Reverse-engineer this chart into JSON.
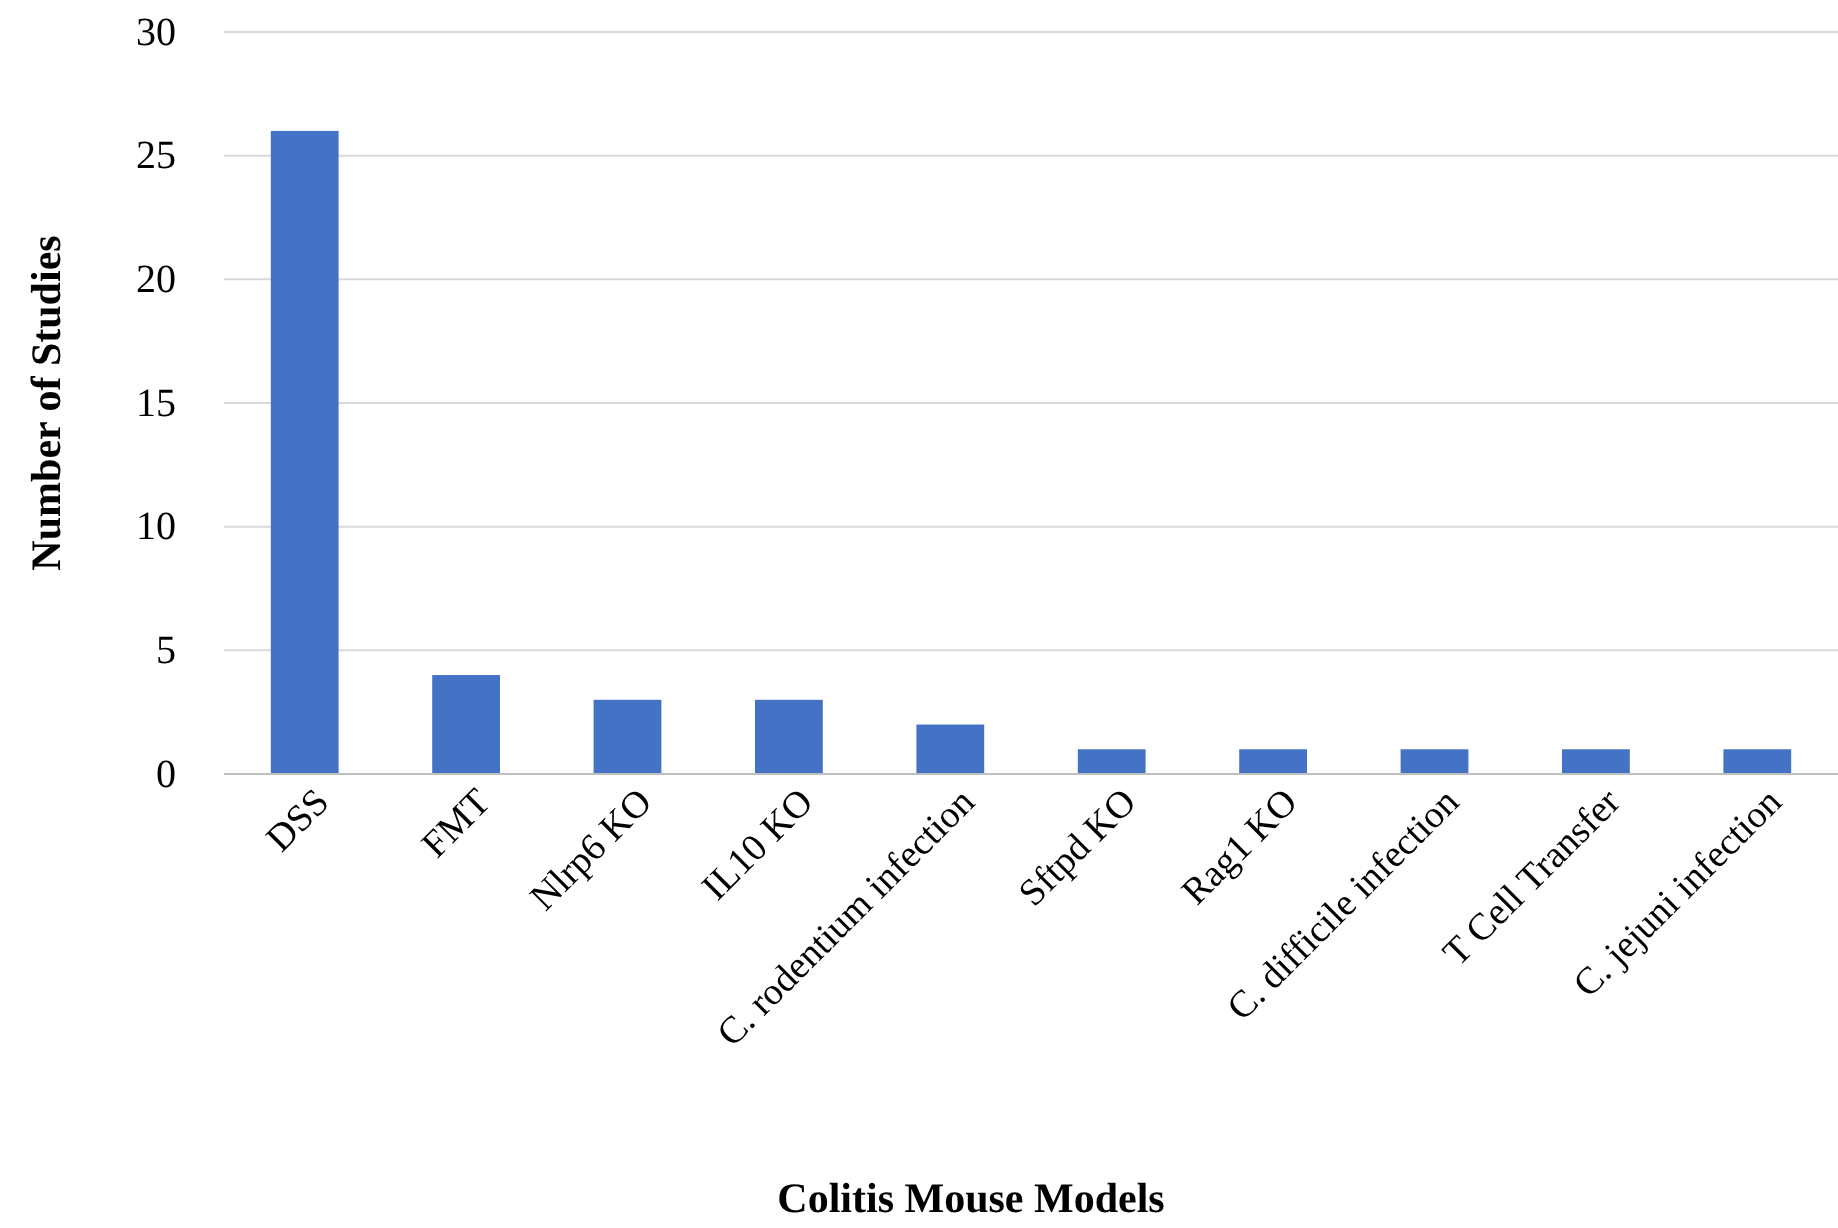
{
  "chart_data": {
    "type": "bar",
    "xlabel": "Colitis Mouse Models",
    "ylabel": "Number of Studies",
    "categories": [
      "DSS",
      "FMT",
      "Nlrp6 KO",
      "IL10 KO",
      "C. rodentium infection",
      "Sftpd KO",
      "Rag1 KO",
      "C. difficile infection",
      "T Cell Transfer",
      "C. jejuni infection"
    ],
    "values": [
      26,
      4,
      3,
      3,
      2,
      1,
      1,
      1,
      1,
      1
    ],
    "color": "#4472c4",
    "ylim": [
      0,
      30
    ],
    "yticks": [
      0,
      5,
      10,
      15,
      20,
      25,
      30
    ],
    "grid": "y"
  }
}
